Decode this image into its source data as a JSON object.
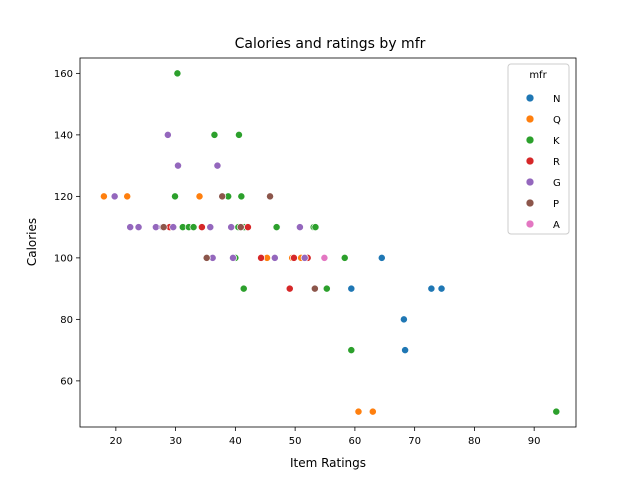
{
  "chart_data": {
    "type": "scatter",
    "title": "Calories and ratings by mfr",
    "xlabel": "Item Ratings",
    "ylabel": "Calories",
    "xlim": [
      14.0,
      97.0
    ],
    "ylim": [
      45.0,
      165.0
    ],
    "xticks": [
      10,
      20,
      30,
      40,
      50,
      60,
      70,
      80,
      90
    ],
    "yticks": [
      60,
      80,
      100,
      120,
      140,
      160
    ],
    "grid": false,
    "legend": {
      "title": "mfr",
      "placement": "top-right"
    },
    "series": [
      {
        "name": "N",
        "color": "#1f77b4",
        "points": [
          [
            59.4,
            90
          ],
          [
            64.5,
            100
          ],
          [
            68.2,
            80
          ],
          [
            68.4,
            70
          ],
          [
            72.8,
            90
          ],
          [
            74.5,
            90
          ]
        ]
      },
      {
        "name": "Q",
        "color": "#ff7f0e",
        "points": [
          [
            18.0,
            120
          ],
          [
            21.9,
            120
          ],
          [
            34.0,
            120
          ],
          [
            45.3,
            100
          ],
          [
            49.5,
            100
          ],
          [
            51.0,
            100
          ],
          [
            60.6,
            50
          ],
          [
            63.0,
            50
          ]
        ]
      },
      {
        "name": "K",
        "color": "#2ca02c",
        "points": [
          [
            30.3,
            160
          ],
          [
            36.5,
            140
          ],
          [
            40.6,
            140
          ],
          [
            29.9,
            120
          ],
          [
            38.8,
            120
          ],
          [
            41.0,
            120
          ],
          [
            31.2,
            110
          ],
          [
            32.2,
            110
          ],
          [
            33.0,
            110
          ],
          [
            35.8,
            110
          ],
          [
            40.5,
            110
          ],
          [
            41.5,
            110
          ],
          [
            46.9,
            110
          ],
          [
            53.1,
            110
          ],
          [
            53.4,
            110
          ],
          [
            36.2,
            100
          ],
          [
            40.0,
            100
          ],
          [
            58.3,
            100
          ],
          [
            41.4,
            90
          ],
          [
            55.3,
            90
          ],
          [
            59.4,
            70
          ],
          [
            93.7,
            50
          ]
        ]
      },
      {
        "name": "R",
        "color": "#d62728",
        "points": [
          [
            29.0,
            110
          ],
          [
            34.4,
            110
          ],
          [
            42.1,
            110
          ],
          [
            44.3,
            100
          ],
          [
            49.8,
            100
          ],
          [
            52.1,
            100
          ],
          [
            49.1,
            90
          ]
        ]
      },
      {
        "name": "G",
        "color": "#9467bd",
        "points": [
          [
            28.7,
            140
          ],
          [
            30.4,
            130
          ],
          [
            37.0,
            130
          ],
          [
            19.8,
            120
          ],
          [
            22.4,
            110
          ],
          [
            23.8,
            110
          ],
          [
            26.7,
            110
          ],
          [
            27.8,
            110
          ],
          [
            29.6,
            110
          ],
          [
            35.8,
            110
          ],
          [
            39.3,
            110
          ],
          [
            50.8,
            110
          ],
          [
            36.2,
            100
          ],
          [
            39.6,
            100
          ],
          [
            46.6,
            100
          ],
          [
            51.6,
            100
          ]
        ]
      },
      {
        "name": "P",
        "color": "#8c564b",
        "points": [
          [
            37.8,
            120
          ],
          [
            45.8,
            120
          ],
          [
            28.0,
            110
          ],
          [
            40.9,
            110
          ],
          [
            35.2,
            100
          ],
          [
            53.3,
            90
          ]
        ]
      },
      {
        "name": "A",
        "color": "#e377c2",
        "points": [
          [
            54.9,
            100
          ]
        ]
      }
    ]
  }
}
